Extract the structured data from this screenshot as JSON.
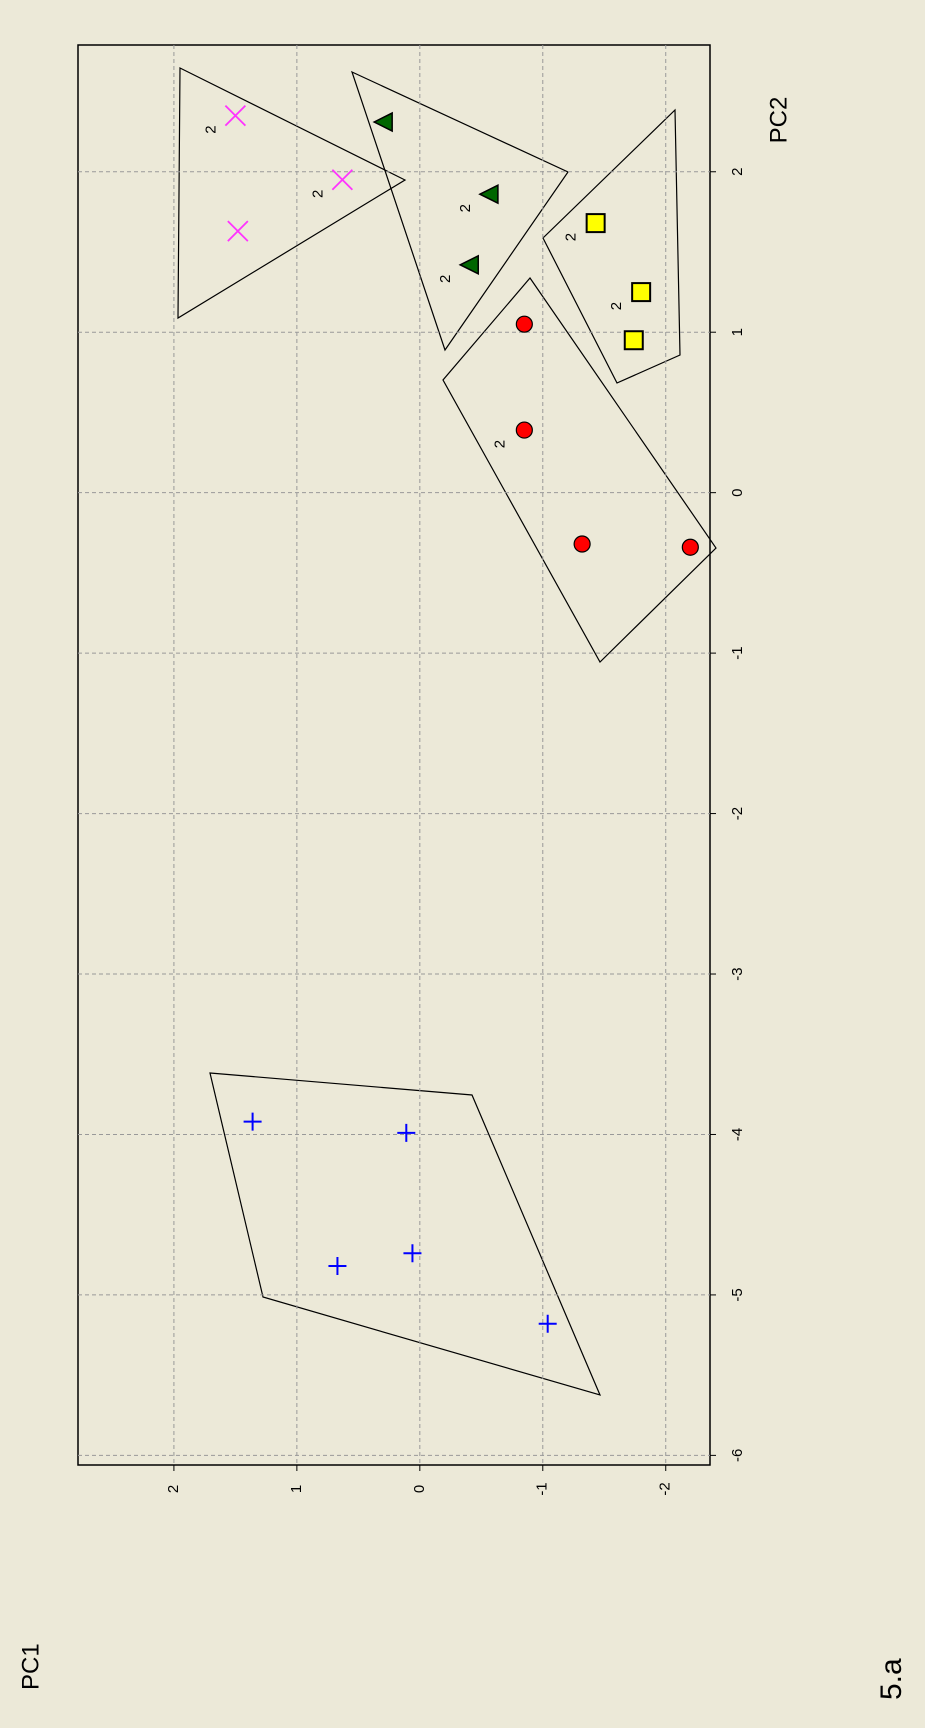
{
  "chart_data": {
    "type": "scatter",
    "title": "5.a",
    "xlabel": "PC2",
    "ylabel": "PC1",
    "xlim": [
      -6.06,
      2.79
    ],
    "ylim": [
      -2.36,
      2.78
    ],
    "xticks": [
      -6,
      -5,
      -4,
      -3,
      -2,
      -1,
      0,
      1,
      2
    ],
    "yticks": [
      -2,
      -1,
      0,
      1,
      2
    ],
    "grid": true,
    "series": [
      {
        "color": "#0000ff",
        "marker": "plus",
        "x": [
          -3.92,
          -3.99,
          -4.82,
          -4.74,
          -5.18
        ],
        "values": [
          1.36,
          0.11,
          0.67,
          0.06,
          -1.04
        ],
        "labels": [
          null,
          null,
          null,
          null,
          null
        ]
      },
      {
        "color": "#ff33ff",
        "marker": "x",
        "x": [
          2.35,
          1.95,
          1.63
        ],
        "values": [
          1.5,
          0.63,
          1.48
        ],
        "labels": [
          "2",
          "2",
          null
        ]
      },
      {
        "color": "#006600",
        "marker": "triangle",
        "x": [
          2.31,
          1.86,
          1.42
        ],
        "values": [
          0.29,
          -0.57,
          -0.41
        ],
        "labels": [
          null,
          "2",
          "2"
        ]
      },
      {
        "color": "#ffff00",
        "marker": "square",
        "x": [
          1.68,
          1.25,
          0.95
        ],
        "values": [
          -1.43,
          -1.8,
          -1.74
        ],
        "labels": [
          "2",
          "2",
          null
        ]
      },
      {
        "color": "#ff0000",
        "marker": "circle",
        "x": [
          1.05,
          0.39,
          -0.32,
          -0.34
        ],
        "values": [
          -0.85,
          -0.85,
          -1.32,
          -2.2
        ],
        "labels": [
          null,
          "2",
          null,
          null
        ]
      }
    ]
  }
}
